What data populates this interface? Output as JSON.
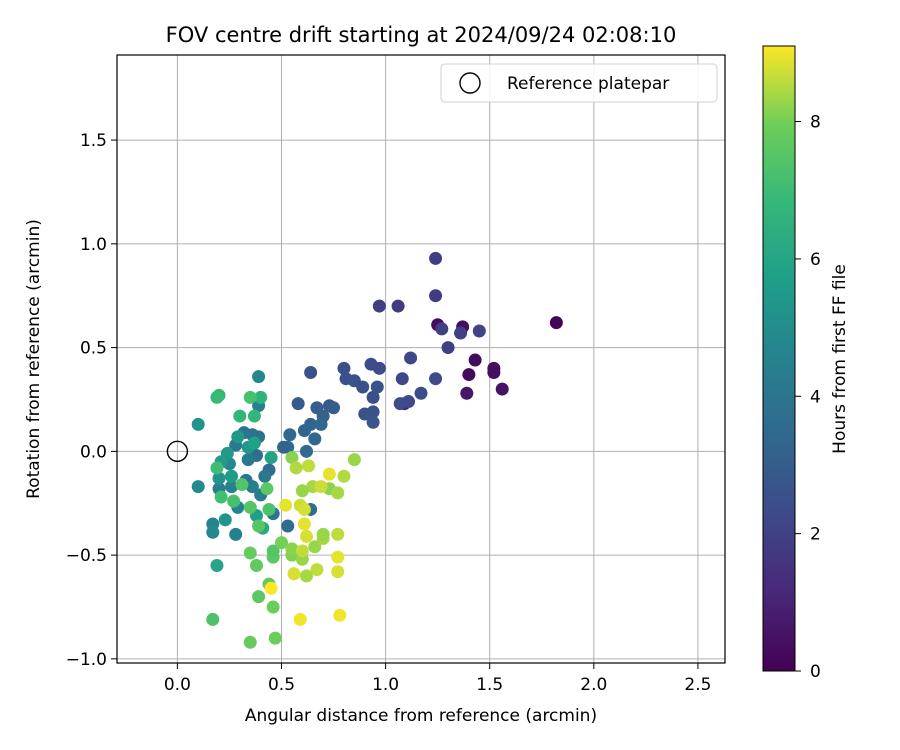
{
  "chart_data": {
    "type": "scatter",
    "title": "FOV centre drift starting at 2024/09/24 02:08:10",
    "xlabel": "Angular distance from reference (arcmin)",
    "ylabel": "Rotation from reference (arcmin)",
    "xlim": [
      -0.29,
      2.63
    ],
    "ylim": [
      -1.02,
      1.91
    ],
    "xticks": [
      0.0,
      0.5,
      1.0,
      1.5,
      2.0,
      2.5
    ],
    "xtick_labels": [
      "0.0",
      "0.5",
      "1.0",
      "1.5",
      "2.0",
      "2.5"
    ],
    "yticks": [
      -1.0,
      -0.5,
      0.0,
      0.5,
      1.0,
      1.5
    ],
    "ytick_labels": [
      "−1.0",
      "−0.5",
      "0.0",
      "0.5",
      "1.0",
      "1.5"
    ],
    "grid": true,
    "legend": {
      "position": "top-right",
      "entries": [
        "Reference platepar"
      ]
    },
    "colorbar": {
      "label": "Hours from first FF file",
      "colormap": "viridis",
      "range": [
        0,
        9.1
      ],
      "ticks": [
        0,
        2,
        4,
        6,
        8
      ],
      "tick_labels": [
        "0",
        "2",
        "4",
        "6",
        "8"
      ]
    },
    "reference_point": {
      "x": 0.0,
      "y": 0.0,
      "label": "Reference platepar"
    },
    "points": [
      [
        1.82,
        0.62,
        0.1
      ],
      [
        1.25,
        0.61,
        0.3
      ],
      [
        1.37,
        0.6,
        0.4
      ],
      [
        1.43,
        0.44,
        0.3
      ],
      [
        1.4,
        0.37,
        0.2
      ],
      [
        1.52,
        0.4,
        0.5
      ],
      [
        1.52,
        0.38,
        0.4
      ],
      [
        1.56,
        0.3,
        0.5
      ],
      [
        1.39,
        0.28,
        0.6
      ],
      [
        1.09,
        0.23,
        0.8
      ],
      [
        1.24,
        0.93,
        1.9
      ],
      [
        1.24,
        0.75,
        1.8
      ],
      [
        1.06,
        0.7,
        1.8
      ],
      [
        0.97,
        0.7,
        1.9
      ],
      [
        1.27,
        0.59,
        2.0
      ],
      [
        1.36,
        0.57,
        2.0
      ],
      [
        1.45,
        0.58,
        2.1
      ],
      [
        1.3,
        0.5,
        2.0
      ],
      [
        1.12,
        0.45,
        2.2
      ],
      [
        0.93,
        0.42,
        2.4
      ],
      [
        0.97,
        0.4,
        2.3
      ],
      [
        0.8,
        0.4,
        2.5
      ],
      [
        0.64,
        0.38,
        2.6
      ],
      [
        0.81,
        0.35,
        2.5
      ],
      [
        0.85,
        0.34,
        2.6
      ],
      [
        0.89,
        0.31,
        2.5
      ],
      [
        0.96,
        0.31,
        2.6
      ],
      [
        1.08,
        0.35,
        2.2
      ],
      [
        1.24,
        0.35,
        2.3
      ],
      [
        1.17,
        0.28,
        2.4
      ],
      [
        0.94,
        0.26,
        2.5
      ],
      [
        1.07,
        0.23,
        2.4
      ],
      [
        1.11,
        0.24,
        2.3
      ],
      [
        0.9,
        0.18,
        2.6
      ],
      [
        0.94,
        0.19,
        2.6
      ],
      [
        0.94,
        0.14,
        2.7
      ],
      [
        0.58,
        0.23,
        2.9
      ],
      [
        0.67,
        0.21,
        3.0
      ],
      [
        0.73,
        0.22,
        2.9
      ],
      [
        0.75,
        0.21,
        3.0
      ],
      [
        0.7,
        0.17,
        3.2
      ],
      [
        0.64,
        0.13,
        3.3
      ],
      [
        0.69,
        0.13,
        3.4
      ],
      [
        0.61,
        0.1,
        3.3
      ],
      [
        0.66,
        0.06,
        3.4
      ],
      [
        0.54,
        0.08,
        3.4
      ],
      [
        0.53,
        0.02,
        3.5
      ],
      [
        0.51,
        0.02,
        3.3
      ],
      [
        0.62,
        0.0,
        3.5
      ],
      [
        0.44,
        -0.09,
        3.6
      ],
      [
        0.38,
        -0.02,
        3.7
      ],
      [
        0.36,
        0.08,
        3.8
      ],
      [
        0.39,
        0.07,
        3.9
      ],
      [
        0.32,
        0.09,
        4.0
      ],
      [
        0.28,
        0.03,
        4.2
      ],
      [
        0.34,
        -0.04,
        4.1
      ],
      [
        0.33,
        -0.14,
        4.0
      ],
      [
        0.4,
        -0.21,
        4.3
      ],
      [
        0.42,
        -0.12,
        4.1
      ],
      [
        0.36,
        -0.17,
        4.4
      ],
      [
        0.46,
        -0.3,
        4.0
      ],
      [
        0.53,
        -0.36,
        3.6
      ],
      [
        0.64,
        -0.28,
        3.7
      ],
      [
        0.39,
        0.36,
        4.7
      ],
      [
        0.39,
        0.22,
        4.5
      ],
      [
        0.25,
        -0.06,
        4.8
      ],
      [
        0.26,
        -0.17,
        4.6
      ],
      [
        0.2,
        -0.18,
        4.4
      ],
      [
        0.29,
        -0.27,
        4.6
      ],
      [
        0.28,
        -0.4,
        4.5
      ],
      [
        0.1,
        -0.17,
        4.9
      ],
      [
        0.17,
        -0.35,
        4.6
      ],
      [
        0.17,
        -0.39,
        4.8
      ],
      [
        0.1,
        0.13,
        5.3
      ],
      [
        0.29,
        0.07,
        5.4
      ],
      [
        0.24,
        -0.01,
        5.5
      ],
      [
        0.21,
        -0.05,
        5.6
      ],
      [
        0.34,
        0.02,
        5.5
      ],
      [
        0.37,
        0.04,
        5.8
      ],
      [
        0.45,
        -0.03,
        5.9
      ],
      [
        0.2,
        -0.13,
        5.2
      ],
      [
        0.23,
        -0.33,
        5.3
      ],
      [
        0.26,
        -0.12,
        5.6
      ],
      [
        0.38,
        -0.31,
        5.7
      ],
      [
        0.19,
        -0.55,
        6.0
      ],
      [
        0.41,
        -0.37,
        6.2
      ],
      [
        0.2,
        0.27,
        6.8
      ],
      [
        0.19,
        0.26,
        6.9
      ],
      [
        0.3,
        0.17,
        6.8
      ],
      [
        0.37,
        0.17,
        6.7
      ],
      [
        0.4,
        0.26,
        6.6
      ],
      [
        0.35,
        0.26,
        7.2
      ],
      [
        0.19,
        -0.08,
        7.0
      ],
      [
        0.21,
        -0.22,
        7.1
      ],
      [
        0.27,
        -0.24,
        7.2
      ],
      [
        0.31,
        -0.16,
        7.4
      ],
      [
        0.35,
        -0.27,
        7.5
      ],
      [
        0.43,
        -0.18,
        7.6
      ],
      [
        0.44,
        -0.28,
        7.3
      ],
      [
        0.39,
        -0.36,
        7.5
      ],
      [
        0.17,
        -0.81,
        7.3
      ],
      [
        0.39,
        -0.7,
        7.6
      ],
      [
        0.46,
        -0.75,
        7.9
      ],
      [
        0.35,
        -0.92,
        7.8
      ],
      [
        0.47,
        -0.9,
        7.9
      ],
      [
        0.46,
        -0.51,
        7.6
      ],
      [
        0.46,
        -0.48,
        7.5
      ],
      [
        0.44,
        -0.64,
        7.7
      ],
      [
        0.38,
        -0.55,
        7.7
      ],
      [
        0.35,
        -0.49,
        7.8
      ],
      [
        0.5,
        -0.44,
        8.0
      ],
      [
        0.55,
        -0.5,
        8.1
      ],
      [
        0.55,
        -0.47,
        8.2
      ],
      [
        0.6,
        -0.52,
        8.3
      ],
      [
        0.62,
        -0.6,
        8.4
      ],
      [
        0.67,
        -0.57,
        8.6
      ],
      [
        0.66,
        -0.46,
        8.3
      ],
      [
        0.7,
        -0.42,
        8.4
      ],
      [
        0.7,
        -0.4,
        8.3
      ],
      [
        0.77,
        -0.4,
        8.6
      ],
      [
        0.73,
        -0.18,
        8.2
      ],
      [
        0.77,
        -0.2,
        8.4
      ],
      [
        0.8,
        -0.12,
        8.5
      ],
      [
        0.85,
        -0.04,
        8.3
      ],
      [
        0.55,
        -0.03,
        8.2
      ],
      [
        0.57,
        -0.08,
        8.5
      ],
      [
        0.63,
        -0.07,
        8.6
      ],
      [
        0.65,
        -0.17,
        8.4
      ],
      [
        0.6,
        -0.19,
        8.3
      ],
      [
        0.59,
        -0.26,
        8.7
      ],
      [
        0.52,
        -0.26,
        8.9
      ],
      [
        0.61,
        -0.28,
        8.8
      ],
      [
        0.61,
        -0.35,
        8.9
      ],
      [
        0.62,
        -0.41,
        8.8
      ],
      [
        0.56,
        -0.59,
        8.8
      ],
      [
        0.6,
        -0.48,
        8.6
      ],
      [
        0.73,
        -0.11,
        8.9
      ],
      [
        0.69,
        -0.17,
        8.7
      ],
      [
        0.77,
        -0.51,
        8.9
      ],
      [
        0.77,
        -0.58,
        8.8
      ],
      [
        0.59,
        -0.81,
        9.0
      ],
      [
        0.45,
        -0.66,
        9.1
      ],
      [
        0.78,
        -0.79,
        9.0
      ]
    ]
  }
}
